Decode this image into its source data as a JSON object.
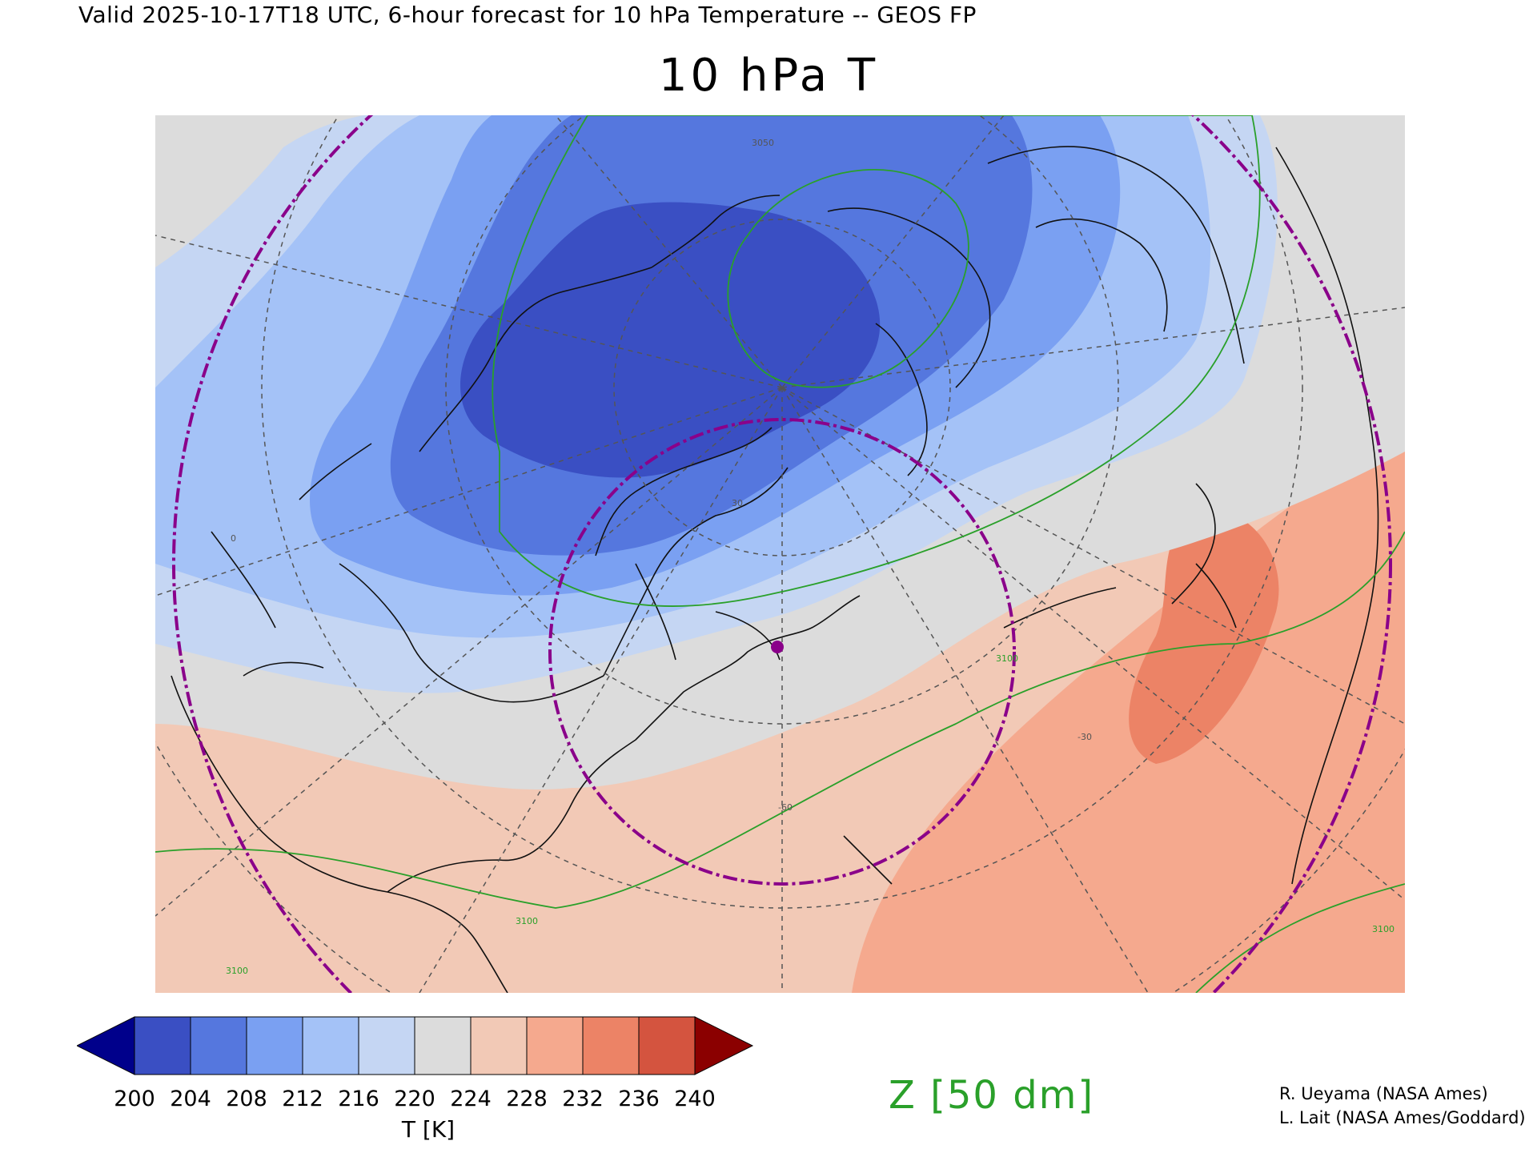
{
  "header": "Valid 2025-10-17T18 UTC, 6-hour forecast for 10 hPa Temperature -- GEOS FP",
  "title": "10 hPa T",
  "colorbar": {
    "ticks": [
      "200",
      "204",
      "208",
      "212",
      "216",
      "220",
      "224",
      "228",
      "232",
      "236",
      "240"
    ],
    "unit_label": "T [K]",
    "colors": [
      "#00008b",
      "#3a4fc3",
      "#5577de",
      "#7aa0f2",
      "#a4c2f7",
      "#c5d6f3",
      "#dcdcdc",
      "#f2c9b6",
      "#f5a98e",
      "#ec8366",
      "#d4543f",
      "#8b0000"
    ]
  },
  "contour_label": "Z [50 dm]",
  "contour_color": "#2aa02a",
  "credits": [
    "R. Ueyama (NASA Ames)",
    "L. Lait (NASA Ames/Goddard)"
  ],
  "map": {
    "projection": "polar stereographic",
    "contour_labels": [
      "3050",
      "3100",
      "3100",
      "3100",
      "3100"
    ],
    "graticule_labels": [
      "-60",
      "-30",
      "30",
      "0"
    ],
    "highlight_point_color": "#8a008a",
    "circle_color": "#8a008a"
  }
}
